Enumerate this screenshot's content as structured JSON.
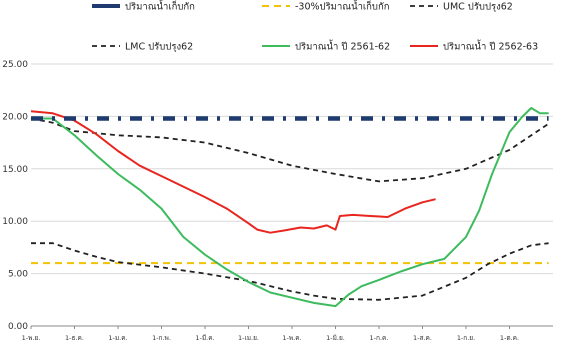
{
  "chart_data": {
    "type": "line",
    "title": "",
    "xlabel": "",
    "ylabel": "",
    "ylim": [
      0,
      25
    ],
    "yticks": [
      "0.00",
      "5.00",
      "10.00",
      "15.00",
      "20.00",
      "25.00"
    ],
    "x_ticks": [
      "1-พ.ย.",
      "1-ธ.ค.",
      "1-ม.ค.",
      "1-ก.พ.",
      "1-มี.ค.",
      "1-เม.ย.",
      "1-พ.ค.",
      "1-มิ.ย.",
      "1-ก.ค.",
      "1-ส.ค.",
      "1-ก.ย.",
      "1-ต.ค."
    ],
    "grid": "horizontal",
    "legend_position": "top",
    "series": [
      {
        "name": "ปริมาณน้ำเก็บกัก",
        "color": "#1f3a6e",
        "style": "dashdot-thick",
        "x": [
          0,
          11.9
        ],
        "y": [
          19.8,
          19.8
        ]
      },
      {
        "name": "-30%ปริมาณน้ำเก็บกัก",
        "color": "#f2c200",
        "style": "dashed",
        "x": [
          0,
          11.9
        ],
        "y": [
          6.0,
          6.0
        ]
      },
      {
        "name": "UMC ปรับปรุง62",
        "color": "#222222",
        "style": "dashed",
        "x": [
          0,
          0.5,
          1,
          2,
          3,
          4,
          5,
          6,
          7,
          8,
          9,
          10,
          11,
          11.5,
          11.9
        ],
        "y": [
          19.8,
          19.4,
          18.6,
          18.2,
          18.0,
          17.5,
          16.5,
          15.3,
          14.5,
          13.8,
          14.1,
          15.0,
          16.8,
          18.2,
          19.3
        ]
      },
      {
        "name": "LMC ปรับปรุง62",
        "color": "#222222",
        "style": "dashed",
        "x": [
          0,
          0.5,
          1,
          1.5,
          2,
          3,
          4,
          5,
          6,
          6.5,
          7,
          8,
          9,
          10,
          10.5,
          11,
          11.5,
          11.9
        ],
        "y": [
          7.9,
          7.9,
          7.2,
          6.6,
          6.1,
          5.6,
          5.0,
          4.3,
          3.3,
          2.9,
          2.6,
          2.5,
          2.9,
          4.6,
          5.9,
          6.9,
          7.7,
          7.9
        ]
      },
      {
        "name": "ปริมาณน้ำ ปี 2561-62",
        "color": "#3dbb5d",
        "style": "solid",
        "x": [
          0,
          0.5,
          1,
          1.5,
          2,
          2.5,
          3,
          3.5,
          4,
          4.5,
          5,
          5.5,
          6,
          6.5,
          7,
          7.3,
          7.6,
          8,
          8.5,
          9,
          9.5,
          10,
          10.3,
          10.6,
          11,
          11.3,
          11.5,
          11.7,
          11.9
        ],
        "y": [
          19.8,
          19.8,
          18.2,
          16.3,
          14.5,
          13.0,
          11.2,
          8.5,
          6.8,
          5.4,
          4.2,
          3.2,
          2.7,
          2.2,
          1.9,
          3.0,
          3.8,
          4.4,
          5.2,
          5.9,
          6.4,
          8.5,
          11.0,
          14.5,
          18.5,
          20.0,
          20.8,
          20.3,
          20.3
        ]
      },
      {
        "name": "ปริมาณน้ำ ปี 2562-63",
        "color": "#e8251f",
        "style": "solid",
        "x": [
          0,
          0.5,
          1,
          1.5,
          2,
          2.5,
          3,
          3.5,
          4,
          4.5,
          5,
          5.2,
          5.5,
          5.8,
          6.2,
          6.5,
          6.8,
          7.0,
          7.1,
          7.4,
          7.8,
          8.2,
          8.6,
          9.0,
          9.3
        ],
        "y": [
          20.5,
          20.3,
          19.6,
          18.3,
          16.7,
          15.3,
          14.3,
          13.3,
          12.3,
          11.2,
          9.8,
          9.2,
          8.9,
          9.1,
          9.4,
          9.3,
          9.6,
          9.2,
          10.5,
          10.6,
          10.5,
          10.4,
          11.2,
          11.8,
          12.1
        ]
      }
    ]
  }
}
